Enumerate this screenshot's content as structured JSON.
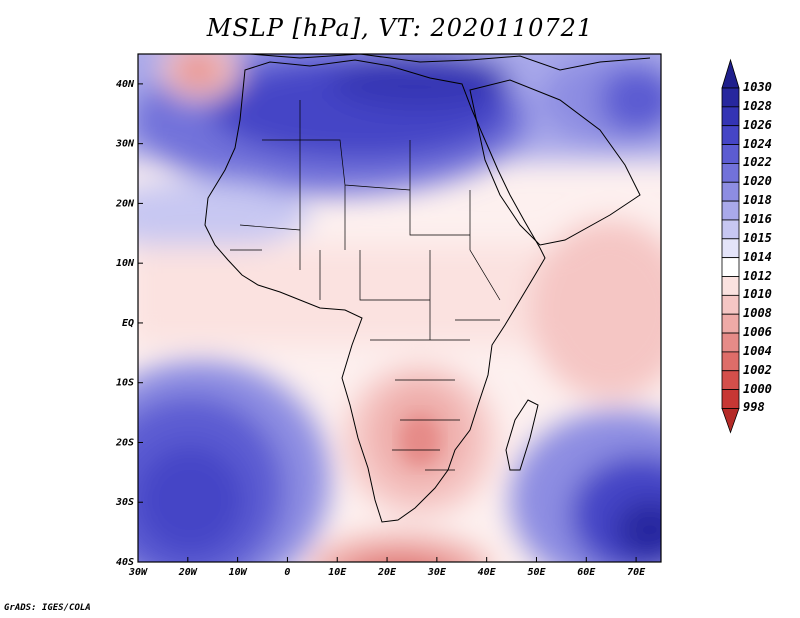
{
  "title": "MSLP [hPa], VT: 2020110721",
  "credit": "GrADS: IGES/COLA",
  "map": {
    "lon_range": [
      -30,
      75
    ],
    "lat_range": [
      -40,
      45
    ],
    "lon_ticks": [
      {
        "value": -30,
        "label": "30W"
      },
      {
        "value": -20,
        "label": "20W"
      },
      {
        "value": -10,
        "label": "10W"
      },
      {
        "value": 0,
        "label": "0"
      },
      {
        "value": 10,
        "label": "10E"
      },
      {
        "value": 20,
        "label": "20E"
      },
      {
        "value": 30,
        "label": "30E"
      },
      {
        "value": 40,
        "label": "40E"
      },
      {
        "value": 50,
        "label": "50E"
      },
      {
        "value": 60,
        "label": "60E"
      },
      {
        "value": 70,
        "label": "70E"
      }
    ],
    "lat_ticks": [
      {
        "value": 40,
        "label": "40N"
      },
      {
        "value": 30,
        "label": "30N"
      },
      {
        "value": 20,
        "label": "20N"
      },
      {
        "value": 10,
        "label": "10N"
      },
      {
        "value": 0,
        "label": "EQ"
      },
      {
        "value": -10,
        "label": "10S"
      },
      {
        "value": -20,
        "label": "20S"
      },
      {
        "value": -30,
        "label": "30S"
      },
      {
        "value": -40,
        "label": "40S"
      }
    ]
  },
  "colorbar": {
    "max_label": "1030",
    "levels": [
      {
        "label": "1028",
        "color": "#27279e"
      },
      {
        "label": "1026",
        "color": "#3434b4"
      },
      {
        "label": "1024",
        "color": "#4545c6"
      },
      {
        "label": "1022",
        "color": "#5c5cd2"
      },
      {
        "label": "1020",
        "color": "#7272da"
      },
      {
        "label": "1018",
        "color": "#8d8de2"
      },
      {
        "label": "1016",
        "color": "#a9a9ea"
      },
      {
        "label": "1015",
        "color": "#c7c7f2"
      },
      {
        "label": "1014",
        "color": "#e4e4f9"
      },
      {
        "label": "1012",
        "color": "#ffffff"
      },
      {
        "label": "1010",
        "color": "#fbe2e0"
      },
      {
        "label": "1008",
        "color": "#f5c6c4"
      },
      {
        "label": "1006",
        "color": "#eeaaa7"
      },
      {
        "label": "1004",
        "color": "#e68b88"
      },
      {
        "label": "1002",
        "color": "#de6d69"
      },
      {
        "label": "1000",
        "color": "#d44f4b"
      },
      {
        "label": "998",
        "color": "#c73734"
      }
    ],
    "top_color": "#1f1f8c",
    "bottom_color": "#b52a27"
  }
}
